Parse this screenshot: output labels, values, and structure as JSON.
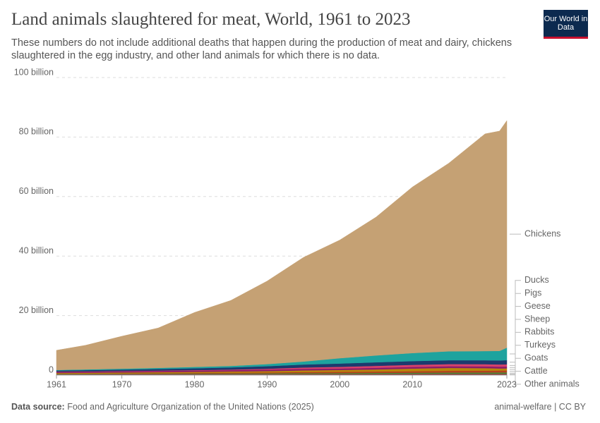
{
  "logo": "Our World in Data",
  "footer": {
    "source_label": "Data source:",
    "source": "Food and Agriculture Organization of the United Nations (2025)",
    "license": "animal-welfare | CC BY"
  },
  "chart_data": {
    "type": "stacked-area",
    "title": "Land animals slaughtered for meat, World, 1961 to 2023",
    "subtitle": "These numbers do not include additional deaths that happen during the production of meat and dairy, chickens slaughtered in the egg industry, and other land animals for which there is no data.",
    "x": [
      1961,
      1965,
      1970,
      1975,
      1980,
      1985,
      1990,
      1995,
      2000,
      2005,
      2010,
      2015,
      2020,
      2022,
      2023
    ],
    "xlim": [
      1961,
      2023
    ],
    "xticks": [
      1961,
      1970,
      1980,
      1990,
      2000,
      2010,
      2023
    ],
    "ylim": [
      0,
      100
    ],
    "yticks": [
      0,
      {
        "value": 20,
        "label": "20 billion"
      },
      {
        "value": 40,
        "label": "40 billion"
      },
      {
        "value": 60,
        "label": "60 billion"
      },
      {
        "value": 80,
        "label": "80 billion"
      },
      {
        "value": 100,
        "label": "100 billion"
      }
    ],
    "grid": true,
    "series": [
      {
        "name": "Other animals",
        "color": "#4c6a9c",
        "values": [
          0.06,
          0.06,
          0.07,
          0.07,
          0.08,
          0.08,
          0.08,
          0.09,
          0.09,
          0.09,
          0.1,
          0.1,
          0.1,
          0.1,
          0.1
        ]
      },
      {
        "name": "Cattle",
        "color": "#9b1f2f",
        "values": [
          0.17,
          0.18,
          0.2,
          0.22,
          0.23,
          0.24,
          0.25,
          0.26,
          0.27,
          0.28,
          0.29,
          0.3,
          0.3,
          0.31,
          0.31
        ]
      },
      {
        "name": "Goats",
        "color": "#4b8b3b",
        "values": [
          0.14,
          0.15,
          0.16,
          0.18,
          0.2,
          0.23,
          0.26,
          0.3,
          0.33,
          0.38,
          0.41,
          0.45,
          0.47,
          0.49,
          0.5
        ]
      },
      {
        "name": "Turkeys",
        "color": "#b5411c",
        "values": [
          0.1,
          0.12,
          0.15,
          0.18,
          0.22,
          0.26,
          0.3,
          0.38,
          0.42,
          0.45,
          0.5,
          0.6,
          0.62,
          0.63,
          0.64
        ]
      },
      {
        "name": "Rabbits",
        "color": "#b8860b",
        "values": [
          0.25,
          0.27,
          0.3,
          0.33,
          0.36,
          0.4,
          0.45,
          0.55,
          0.6,
          0.7,
          0.9,
          0.95,
          0.85,
          0.7,
          0.7
        ]
      },
      {
        "name": "Sheep",
        "color": "#8c1c6a",
        "values": [
          0.33,
          0.35,
          0.38,
          0.4,
          0.42,
          0.45,
          0.5,
          0.52,
          0.52,
          0.55,
          0.55,
          0.57,
          0.6,
          0.6,
          0.61
        ]
      },
      {
        "name": "Geese",
        "color": "#d6416a",
        "values": [
          0.1,
          0.11,
          0.12,
          0.14,
          0.16,
          0.2,
          0.3,
          0.45,
          0.55,
          0.65,
          0.7,
          0.72,
          0.73,
          0.74,
          0.75
        ]
      },
      {
        "name": "Pigs",
        "color": "#1d3a6e",
        "values": [
          0.38,
          0.42,
          0.47,
          0.55,
          0.62,
          0.72,
          0.85,
          1.0,
          1.1,
          1.2,
          1.25,
          1.3,
          1.3,
          1.35,
          1.4
        ]
      },
      {
        "name": "Ducks",
        "color": "#1ea39e",
        "values": [
          0.2,
          0.25,
          0.3,
          0.35,
          0.45,
          0.5,
          0.7,
          1.0,
          1.8,
          2.3,
          2.7,
          3.0,
          3.1,
          3.2,
          4.2
        ]
      },
      {
        "name": "Chickens",
        "color": "#c5a174",
        "values": [
          6.6,
          8.1,
          10.9,
          13.4,
          18.3,
          22.0,
          27.9,
          35.0,
          39.7,
          46.5,
          55.8,
          63.2,
          73.0,
          73.9,
          76.3
        ]
      }
    ]
  }
}
